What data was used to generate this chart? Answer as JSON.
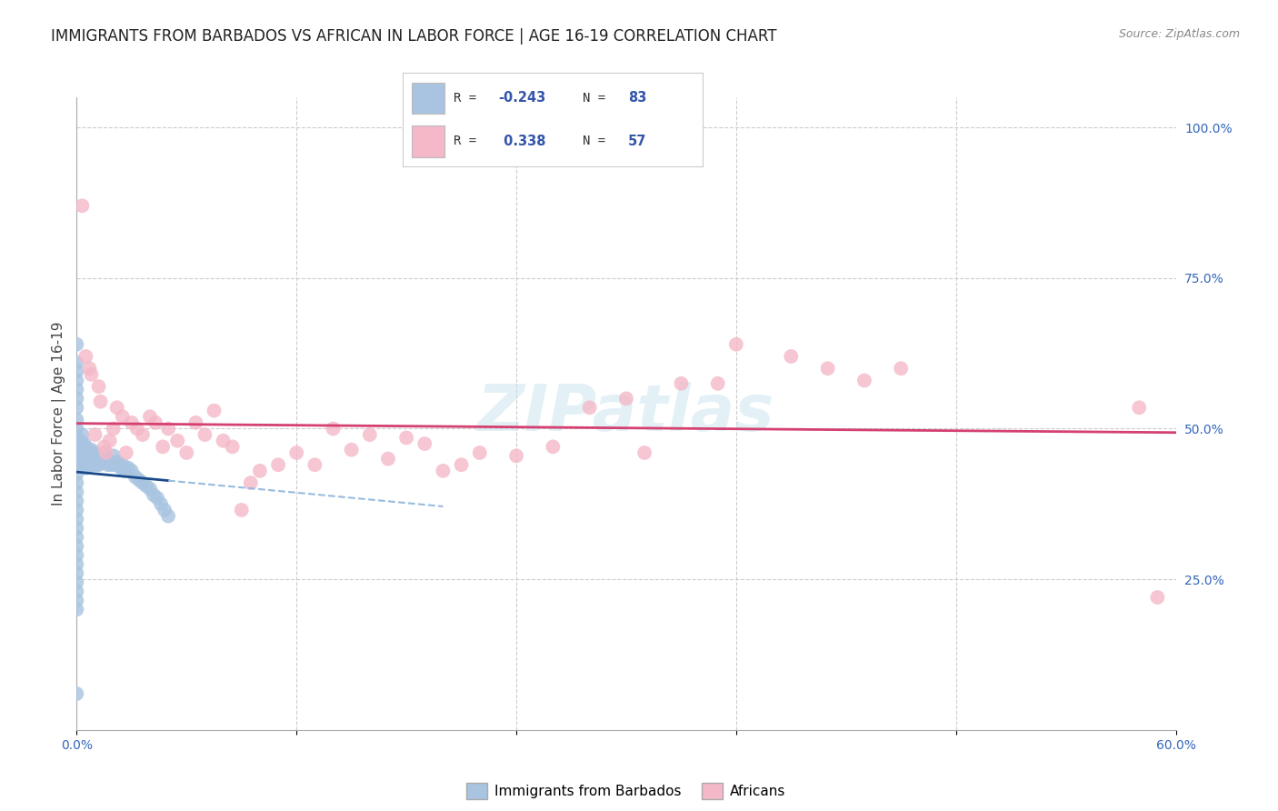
{
  "title": "IMMIGRANTS FROM BARBADOS VS AFRICAN IN LABOR FORCE | AGE 16-19 CORRELATION CHART",
  "source": "Source: ZipAtlas.com",
  "ylabel_label": "In Labor Force | Age 16-19",
  "xlim": [
    0.0,
    0.6
  ],
  "ylim": [
    0.0,
    1.05
  ],
  "r_barbados": -0.243,
  "n_barbados": 83,
  "r_african": 0.338,
  "n_african": 57,
  "legend_label_1": "Immigrants from Barbados",
  "legend_label_2": "Africans",
  "color_barbados": "#a8c4e0",
  "color_african": "#f4b8c8",
  "trendline_barbados_color": "#1a4a8a",
  "trendline_african_color": "#d44070",
  "trendline_barbados_dashed_color": "#99bbdd",
  "watermark": "ZIPatlas",
  "barbados_x": [
    0.0,
    0.0,
    0.0,
    0.0,
    0.0,
    0.0,
    0.0,
    0.0,
    0.0,
    0.0,
    0.0,
    0.0,
    0.0,
    0.0,
    0.0,
    0.0,
    0.0,
    0.0,
    0.0,
    0.0,
    0.0,
    0.0,
    0.0,
    0.0,
    0.0,
    0.0,
    0.0,
    0.0,
    0.0,
    0.0,
    0.002,
    0.002,
    0.002,
    0.003,
    0.003,
    0.003,
    0.004,
    0.004,
    0.004,
    0.005,
    0.005,
    0.005,
    0.006,
    0.006,
    0.007,
    0.007,
    0.008,
    0.008,
    0.009,
    0.009,
    0.01,
    0.01,
    0.011,
    0.011,
    0.012,
    0.012,
    0.013,
    0.014,
    0.015,
    0.015,
    0.016,
    0.017,
    0.018,
    0.019,
    0.02,
    0.021,
    0.022,
    0.023,
    0.024,
    0.025,
    0.026,
    0.028,
    0.03,
    0.032,
    0.034,
    0.036,
    0.038,
    0.04,
    0.042,
    0.044,
    0.046,
    0.048,
    0.05
  ],
  "barbados_y": [
    0.64,
    0.61,
    0.595,
    0.58,
    0.565,
    0.55,
    0.535,
    0.515,
    0.5,
    0.485,
    0.47,
    0.455,
    0.44,
    0.425,
    0.41,
    0.395,
    0.38,
    0.365,
    0.35,
    0.335,
    0.32,
    0.305,
    0.29,
    0.275,
    0.26,
    0.245,
    0.23,
    0.215,
    0.2,
    0.06,
    0.48,
    0.46,
    0.445,
    0.49,
    0.465,
    0.45,
    0.475,
    0.455,
    0.44,
    0.47,
    0.45,
    0.435,
    0.465,
    0.445,
    0.46,
    0.44,
    0.465,
    0.445,
    0.455,
    0.44,
    0.46,
    0.445,
    0.455,
    0.44,
    0.455,
    0.44,
    0.45,
    0.445,
    0.46,
    0.445,
    0.45,
    0.44,
    0.445,
    0.44,
    0.455,
    0.44,
    0.445,
    0.44,
    0.435,
    0.44,
    0.43,
    0.435,
    0.43,
    0.42,
    0.415,
    0.41,
    0.405,
    0.4,
    0.39,
    0.385,
    0.375,
    0.365,
    0.355
  ],
  "african_x": [
    0.003,
    0.005,
    0.007,
    0.008,
    0.01,
    0.012,
    0.013,
    0.015,
    0.016,
    0.018,
    0.02,
    0.022,
    0.025,
    0.027,
    0.03,
    0.033,
    0.036,
    0.04,
    0.043,
    0.047,
    0.05,
    0.055,
    0.06,
    0.065,
    0.07,
    0.075,
    0.08,
    0.085,
    0.09,
    0.095,
    0.1,
    0.11,
    0.12,
    0.13,
    0.14,
    0.15,
    0.16,
    0.17,
    0.18,
    0.19,
    0.2,
    0.21,
    0.22,
    0.24,
    0.26,
    0.28,
    0.3,
    0.31,
    0.33,
    0.35,
    0.36,
    0.39,
    0.41,
    0.43,
    0.45,
    0.58,
    0.59
  ],
  "african_y": [
    0.87,
    0.62,
    0.6,
    0.59,
    0.49,
    0.57,
    0.545,
    0.47,
    0.46,
    0.48,
    0.5,
    0.535,
    0.52,
    0.46,
    0.51,
    0.5,
    0.49,
    0.52,
    0.51,
    0.47,
    0.5,
    0.48,
    0.46,
    0.51,
    0.49,
    0.53,
    0.48,
    0.47,
    0.365,
    0.41,
    0.43,
    0.44,
    0.46,
    0.44,
    0.5,
    0.465,
    0.49,
    0.45,
    0.485,
    0.475,
    0.43,
    0.44,
    0.46,
    0.455,
    0.47,
    0.535,
    0.55,
    0.46,
    0.575,
    0.575,
    0.64,
    0.62,
    0.6,
    0.58,
    0.6,
    0.535,
    0.22
  ]
}
